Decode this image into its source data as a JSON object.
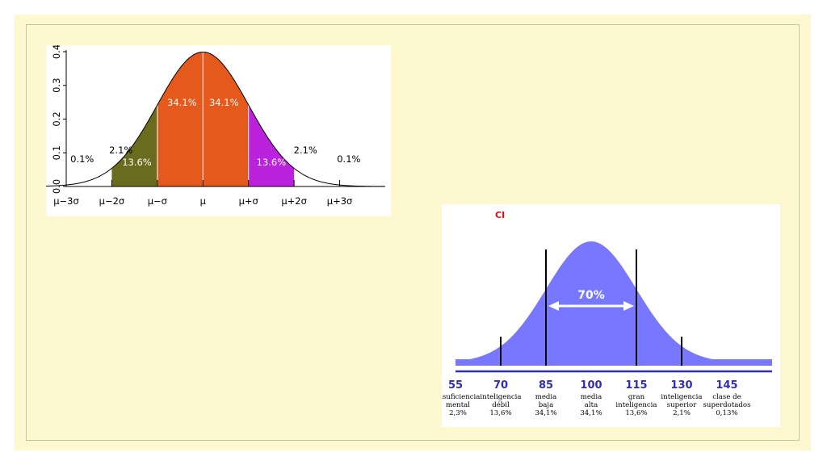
{
  "colors": {
    "background": "#fdf8cf",
    "dark_olive": "#6b6b1e",
    "orange": "#e55a1c",
    "purple": "#bb22dd",
    "blue_fill": "#7777ff",
    "axis_blue": "#2e2eb8",
    "title_red": "#cc1111"
  },
  "chart_data": [
    {
      "type": "area",
      "title": "",
      "xlabel": "",
      "ylabel": "",
      "distribution": "normal",
      "xlim": [
        -3.0,
        4.0
      ],
      "ylim": [
        0,
        0.4
      ],
      "y_ticks": [
        {
          "value": 0.0,
          "label": "0.0"
        },
        {
          "value": 0.1,
          "label": "0.1"
        },
        {
          "value": 0.2,
          "label": "0.2"
        },
        {
          "value": 0.3,
          "label": "0.3"
        },
        {
          "value": 0.4,
          "label": "0.4"
        }
      ],
      "x_ticks": [
        {
          "value": -3,
          "label": "μ−3σ"
        },
        {
          "value": -2,
          "label": "μ−2σ"
        },
        {
          "value": -1,
          "label": "μ−σ"
        },
        {
          "value": 0,
          "label": "μ"
        },
        {
          "value": 1,
          "label": "μ+σ"
        },
        {
          "value": 2,
          "label": "μ+2σ"
        },
        {
          "value": 3,
          "label": "μ+3σ"
        }
      ],
      "regions": [
        {
          "from": -2,
          "to": -1,
          "color": "#6b6b1e"
        },
        {
          "from": -1,
          "to": 0,
          "color": "#e55a1c"
        },
        {
          "from": 0,
          "to": 1,
          "color": "#e55a1c"
        },
        {
          "from": 1,
          "to": 2,
          "color": "#bb22dd"
        }
      ],
      "annotations": [
        {
          "x": -2.65,
          "y": 0.072,
          "text": "0.1%",
          "color": "#000"
        },
        {
          "x": -1.8,
          "y": 0.098,
          "text": "2.1%",
          "color": "#000"
        },
        {
          "x": -1.45,
          "y": 0.062,
          "text": "13.6%",
          "color": "#fff"
        },
        {
          "x": -0.46,
          "y": 0.24,
          "text": "34.1%",
          "color": "#fff"
        },
        {
          "x": 0.46,
          "y": 0.24,
          "text": "34.1%",
          "color": "#fff"
        },
        {
          "x": 1.5,
          "y": 0.062,
          "text": "13.6%",
          "color": "#fff"
        },
        {
          "x": 2.25,
          "y": 0.098,
          "text": "2.1%",
          "color": "#000"
        },
        {
          "x": 3.2,
          "y": 0.072,
          "text": "0.1%",
          "color": "#000"
        }
      ]
    },
    {
      "type": "area",
      "title": "CI",
      "distribution": "normal",
      "mean": 100,
      "sd": 15,
      "xlim": [
        55,
        160
      ],
      "x_ticks": [
        55,
        70,
        85,
        100,
        115,
        130,
        145
      ],
      "vertical_lines": [
        {
          "x": 70,
          "height": "short"
        },
        {
          "x": 85,
          "height": "tall"
        },
        {
          "x": 115,
          "height": "tall"
        },
        {
          "x": 130,
          "height": "short"
        }
      ],
      "range_annotation": {
        "from": 85,
        "to": 115,
        "text": "70%"
      },
      "categories": [
        {
          "x": 55,
          "lines": [
            "insuficiencia",
            "mental",
            "2,3%"
          ]
        },
        {
          "x": 70,
          "lines": [
            "inteligencia",
            "débil",
            "13,6%"
          ]
        },
        {
          "x": 85,
          "lines": [
            "media",
            "baja",
            "34,1%"
          ]
        },
        {
          "x": 100,
          "lines": [
            "media",
            "alta",
            "34,1%"
          ]
        },
        {
          "x": 115,
          "lines": [
            "gran",
            "inteligencia",
            "13,6%"
          ]
        },
        {
          "x": 130,
          "lines": [
            "inteligencia",
            "superior",
            "2,1%"
          ]
        },
        {
          "x": 145,
          "lines": [
            "clase de",
            "superdotados",
            "0,13%"
          ]
        }
      ]
    }
  ]
}
